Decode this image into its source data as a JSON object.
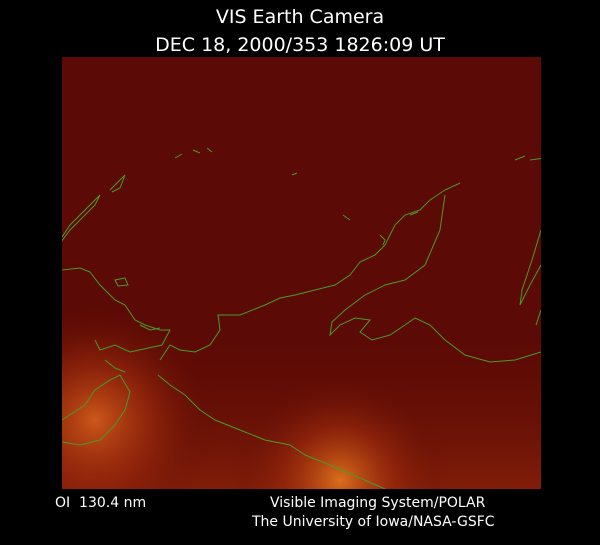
{
  "title": "VIS Earth Camera",
  "timestamp": "DEC 18, 2000/353 1826:09 UT",
  "footer": {
    "filter": "OI  130.4 nm",
    "instrument": "Visible Imaging System/POLAR",
    "institution": "The University of Iowa/NASA-GSFC"
  }
}
